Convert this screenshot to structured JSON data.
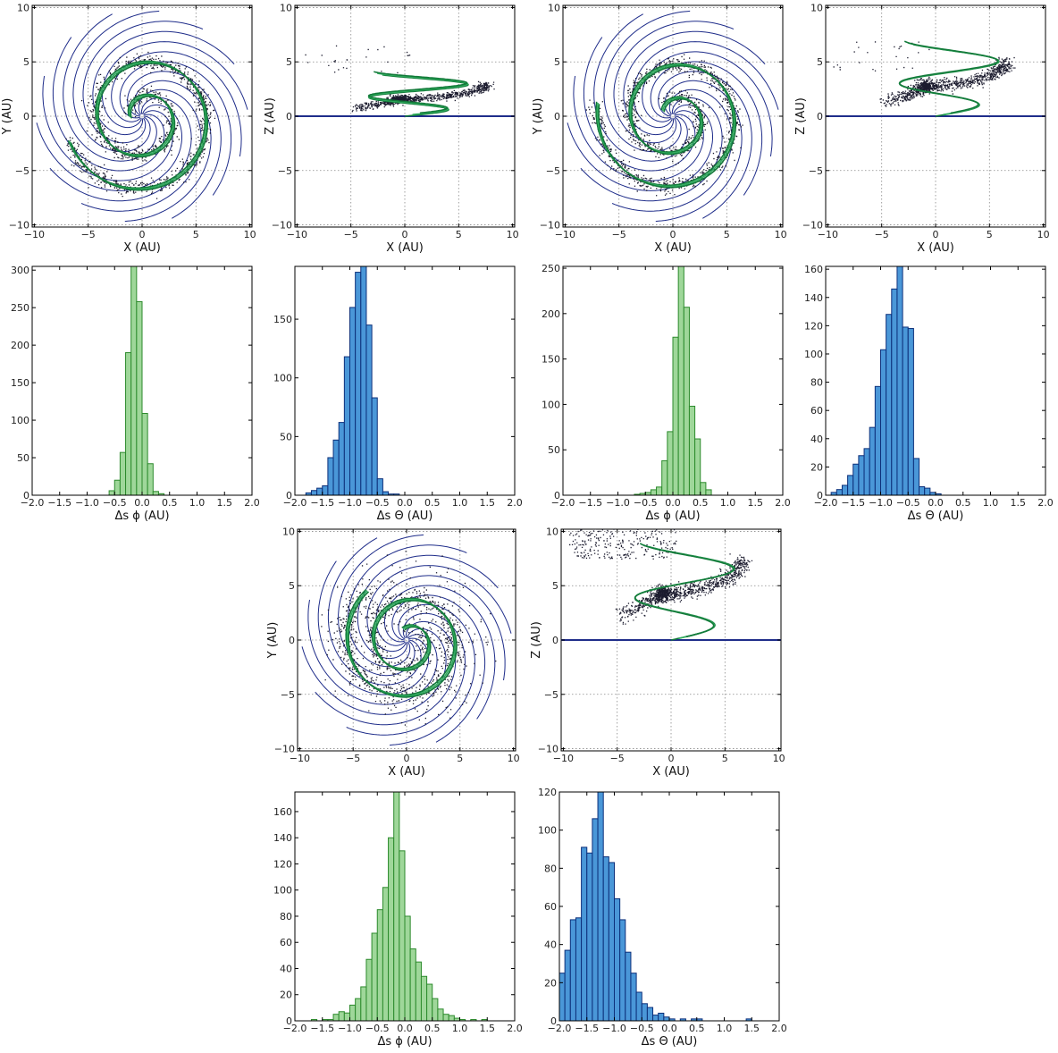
{
  "colors": {
    "spiral": "#1f2d8a",
    "stream": "#137a3a",
    "stream_light": "#2fae5e",
    "particle": "#1b1b2e",
    "green_bar": "#9fd79a",
    "green_edge": "#2c8a2c",
    "blue_bar": "#4a97d8",
    "blue_edge": "#0c2f7a",
    "grid": "#888888"
  },
  "chart_data": [
    {
      "type": "scatter",
      "title": "",
      "xlabel": "X (AU)",
      "ylabel": "Y (AU)",
      "xlim": [
        -10,
        10
      ],
      "ylim": [
        -10,
        10
      ],
      "xticks": [
        "−10",
        "−5",
        "0",
        "5",
        "10"
      ],
      "yticks": [
        "−10",
        "−5",
        "0",
        "5",
        "10"
      ],
      "grid": true,
      "series": [
        {
          "name": "",
          "values": []
        }
      ]
    },
    {
      "type": "scatter",
      "title": "",
      "xlabel": "X (AU)",
      "ylabel": "Z (AU)",
      "xlim": [
        -10,
        10
      ],
      "ylim": [
        -10,
        10
      ],
      "xticks": [
        "−10",
        "−5",
        "0",
        "5",
        "10"
      ],
      "yticks": [
        "−10",
        "−5",
        "0",
        "5",
        "10"
      ],
      "grid": true,
      "series": [
        {
          "name": "",
          "values": []
        }
      ]
    },
    {
      "type": "scatter",
      "title": "",
      "xlabel": "X (AU)",
      "ylabel": "Y (AU)",
      "xlim": [
        -10,
        10
      ],
      "ylim": [
        -10,
        10
      ],
      "xticks": [
        "−10",
        "−5",
        "0",
        "5",
        "10"
      ],
      "yticks": [
        "−10",
        "−5",
        "0",
        "5",
        "10"
      ],
      "grid": true,
      "series": [
        {
          "name": "",
          "values": []
        }
      ]
    },
    {
      "type": "scatter",
      "title": "",
      "xlabel": "X (AU)",
      "ylabel": "Z (AU)",
      "xlim": [
        -10,
        10
      ],
      "ylim": [
        -10,
        10
      ],
      "xticks": [
        "−10",
        "−5",
        "0",
        "5",
        "10"
      ],
      "yticks": [
        "−10",
        "−5",
        "0",
        "5",
        "10"
      ],
      "grid": true,
      "series": [
        {
          "name": "",
          "values": []
        }
      ]
    },
    {
      "type": "bar",
      "title": "",
      "xlabel": "Δs ϕ (AU)",
      "ylabel": "",
      "xlim": [
        -2.0,
        2.0
      ],
      "ylim": [
        0,
        305
      ],
      "bin_width": 0.1,
      "categories": [
        "-0.6",
        "-0.5",
        "-0.4",
        "-0.3",
        "-0.2",
        "-0.1",
        "0.0",
        "0.1",
        "0.2",
        "0.3"
      ],
      "values": [
        6,
        20,
        57,
        190,
        305,
        258,
        109,
        42,
        5,
        2
      ],
      "xticks": [
        "−2.0",
        "−1.5",
        "−1.0",
        "−0.5",
        "0.0",
        "0.5",
        "1.0",
        "1.5",
        "2.0"
      ],
      "yticks": [
        "0",
        "50",
        "100",
        "150",
        "200",
        "250",
        "300"
      ],
      "ytick_values": [
        0,
        50,
        100,
        150,
        200,
        250,
        300
      ]
    },
    {
      "type": "bar",
      "title": "",
      "xlabel": "Δs Θ (AU)",
      "ylabel": "",
      "xlim": [
        -2.0,
        2.0
      ],
      "ylim": [
        0,
        195
      ],
      "bin_width": 0.1,
      "categories": [
        "-1.8",
        "-1.7",
        "-1.6",
        "-1.5",
        "-1.4",
        "-1.3",
        "-1.2",
        "-1.1",
        "-1.0",
        "-0.9",
        "-0.8",
        "-0.7",
        "-0.6",
        "-0.5",
        "-0.4",
        "-0.3",
        "-0.2",
        "-0.1"
      ],
      "values": [
        2,
        4,
        6,
        8,
        32,
        47,
        62,
        118,
        160,
        190,
        195,
        145,
        83,
        14,
        3,
        1,
        1,
        0
      ],
      "xticks": [
        "−2.0",
        "−1.5",
        "−1.0",
        "−0.5",
        "0.0",
        "0.5",
        "1.0",
        "1.5",
        "2.0"
      ],
      "yticks": [
        "0",
        "50",
        "100",
        "150"
      ],
      "ytick_values": [
        0,
        50,
        100,
        150
      ]
    },
    {
      "type": "bar",
      "title": "",
      "xlabel": "Δs ϕ (AU)",
      "ylabel": "",
      "xlim": [
        -2.0,
        2.0
      ],
      "ylim": [
        0,
        252
      ],
      "bin_width": 0.1,
      "categories": [
        "-0.7",
        "-0.6",
        "-0.5",
        "-0.4",
        "-0.3",
        "-0.2",
        "-0.1",
        "0.0",
        "0.1",
        "0.2",
        "0.3",
        "0.4",
        "0.5",
        "0.6"
      ],
      "values": [
        1,
        2,
        3,
        6,
        9,
        38,
        70,
        174,
        252,
        207,
        98,
        62,
        14,
        6
      ],
      "xticks": [
        "−2.0",
        "−1.5",
        "−1.0",
        "−0.5",
        "0.0",
        "0.5",
        "1.0",
        "1.5",
        "2.0"
      ],
      "yticks": [
        "0",
        "50",
        "100",
        "150",
        "200",
        "250"
      ],
      "ytick_values": [
        0,
        50,
        100,
        150,
        200,
        250
      ]
    },
    {
      "type": "bar",
      "title": "",
      "xlabel": "Δs Θ (AU)",
      "ylabel": "",
      "xlim": [
        -2.0,
        2.0
      ],
      "ylim": [
        0,
        162
      ],
      "bin_width": 0.1,
      "categories": [
        "-1.9",
        "-1.8",
        "-1.7",
        "-1.6",
        "-1.5",
        "-1.4",
        "-1.3",
        "-1.2",
        "-1.1",
        "-1.0",
        "-0.9",
        "-0.8",
        "-0.7",
        "-0.6",
        "-0.5",
        "-0.4",
        "-0.3",
        "-0.2",
        "-0.1",
        "0.0",
        "0.1",
        "0.2"
      ],
      "values": [
        2,
        4,
        7,
        14,
        22,
        28,
        33,
        48,
        77,
        103,
        128,
        146,
        162,
        119,
        118,
        26,
        6,
        5,
        2,
        1,
        0,
        0
      ],
      "xticks": [
        "−2.0",
        "−1.5",
        "−1.0",
        "−0.5",
        "0.0",
        "0.5",
        "1.0",
        "1.5",
        "2.0"
      ],
      "yticks": [
        "0",
        "20",
        "40",
        "60",
        "80",
        "100",
        "120",
        "140",
        "160"
      ],
      "ytick_values": [
        0,
        20,
        40,
        60,
        80,
        100,
        120,
        140,
        160
      ]
    },
    {
      "type": "scatter",
      "title": "",
      "xlabel": "X (AU)",
      "ylabel": "Y (AU)",
      "xlim": [
        -10,
        10
      ],
      "ylim": [
        -10,
        10
      ],
      "xticks": [
        "−10",
        "−5",
        "0",
        "5",
        "10"
      ],
      "yticks": [
        "−10",
        "−5",
        "0",
        "5",
        "10"
      ],
      "grid": true,
      "series": [
        {
          "name": "",
          "values": []
        }
      ]
    },
    {
      "type": "scatter",
      "title": "",
      "xlabel": "X (AU)",
      "ylabel": "Z (AU)",
      "xlim": [
        -10,
        10
      ],
      "ylim": [
        -10,
        10
      ],
      "xticks": [
        "−10",
        "−5",
        "0",
        "5",
        "10"
      ],
      "yticks": [
        "−10",
        "−5",
        "0",
        "5",
        "10"
      ],
      "grid": true,
      "series": [
        {
          "name": "",
          "values": []
        }
      ]
    },
    {
      "type": "bar",
      "title": "",
      "xlabel": "Δs ϕ (AU)",
      "ylabel": "",
      "xlim": [
        -2.0,
        2.0
      ],
      "ylim": [
        0,
        175
      ],
      "bin_width": 0.1,
      "categories": [
        "-1.7",
        "-1.6",
        "-1.5",
        "-1.4",
        "-1.3",
        "-1.2",
        "-1.1",
        "-1.0",
        "-0.9",
        "-0.8",
        "-0.7",
        "-0.6",
        "-0.5",
        "-0.4",
        "-0.3",
        "-0.2",
        "-0.1",
        "0.0",
        "0.1",
        "0.2",
        "0.3",
        "0.4",
        "0.5",
        "0.6",
        "0.7",
        "0.8",
        "0.9",
        "1.0",
        "1.1",
        "1.2",
        "1.3",
        "1.4"
      ],
      "values": [
        1,
        0,
        1,
        1,
        5,
        7,
        6,
        12,
        17,
        26,
        47,
        67,
        85,
        102,
        140,
        175,
        130,
        80,
        55,
        45,
        34,
        28,
        17,
        9,
        5,
        4,
        2,
        1,
        0,
        1,
        0,
        1
      ],
      "xticks": [
        "−2.0",
        "−1.5",
        "−1.0",
        "−0.5",
        "0.0",
        "0.5",
        "1.0",
        "1.5",
        "2.0"
      ],
      "yticks": [
        "0",
        "20",
        "40",
        "60",
        "80",
        "100",
        "120",
        "140",
        "160"
      ],
      "ytick_values": [
        0,
        20,
        40,
        60,
        80,
        100,
        120,
        140,
        160
      ]
    },
    {
      "type": "bar",
      "title": "",
      "xlabel": "Δs Θ (AU)",
      "ylabel": "",
      "xlim": [
        -2.0,
        2.0
      ],
      "ylim": [
        0,
        120
      ],
      "bin_width": 0.1,
      "categories": [
        "-2.0",
        "-1.9",
        "-1.8",
        "-1.7",
        "-1.6",
        "-1.5",
        "-1.4",
        "-1.3",
        "-1.2",
        "-1.1",
        "-1.0",
        "-0.9",
        "-0.8",
        "-0.7",
        "-0.6",
        "-0.5",
        "-0.4",
        "-0.3",
        "-0.2",
        "-0.1",
        "0.0",
        "0.1",
        "0.2",
        "0.3",
        "0.4",
        "0.5",
        "0.6",
        "0.7",
        "0.8",
        "0.9",
        "1.0",
        "1.1",
        "1.2",
        "1.3",
        "1.4",
        "1.5"
      ],
      "values": [
        25,
        37,
        53,
        54,
        91,
        88,
        106,
        120,
        86,
        83,
        64,
        53,
        36,
        25,
        15,
        9,
        7,
        3,
        4,
        2,
        1,
        0,
        1,
        0,
        1,
        1,
        0,
        0,
        0,
        0,
        0,
        0,
        0,
        0,
        1,
        0
      ],
      "xticks": [
        "−2.0",
        "−1.5",
        "−1.0",
        "−0.5",
        "0.0",
        "0.5",
        "1.0",
        "1.5",
        "2.0"
      ],
      "yticks": [
        "0",
        "20",
        "40",
        "60",
        "80",
        "100",
        "120"
      ],
      "ytick_values": [
        0,
        20,
        40,
        60,
        80,
        100,
        120
      ]
    }
  ]
}
